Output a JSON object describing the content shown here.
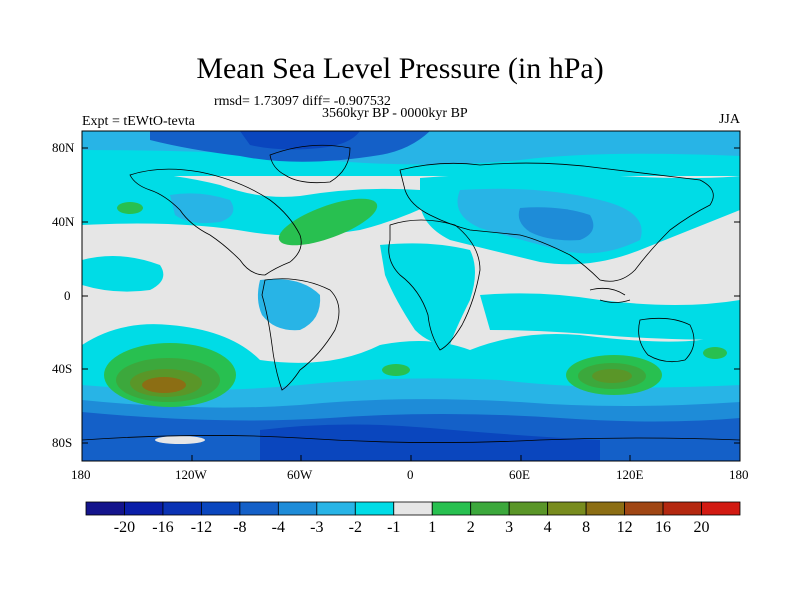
{
  "title": "Mean Sea Level Pressure (in hPa)",
  "stats_line": "rmsd= 1.73097 diff= -0.907532",
  "period": "3560kyr BP - 0000kyr BP",
  "experiment": "Expt = tEWtO-tevta",
  "season": "JJA",
  "lat_ticks": [
    "80N",
    "40N",
    "0",
    "40S",
    "80S"
  ],
  "lon_ticks": [
    "180",
    "120W",
    "60W",
    "0",
    "60E",
    "120E",
    "180"
  ],
  "colorbar": {
    "labels": [
      "-20",
      "-16",
      "-12",
      "-8",
      "-4",
      "-3",
      "-2",
      "-1",
      "1",
      "2",
      "3",
      "4",
      "8",
      "12",
      "16",
      "20"
    ],
    "colors": [
      "#14148c",
      "#0a1ea8",
      "#0a32b4",
      "#0a46be",
      "#1460c8",
      "#1e8cd8",
      "#28b4e6",
      "#00dce6",
      "#e6e6e6",
      "#28c050",
      "#3ca83c",
      "#5a9628",
      "#788c1e",
      "#8c6e14",
      "#a04614",
      "#b42810",
      "#d21a12"
    ]
  },
  "colors": {
    "ocean_base": "#1460c8",
    "land_neutral": "#e6e6e6",
    "coast": "#000000"
  }
}
